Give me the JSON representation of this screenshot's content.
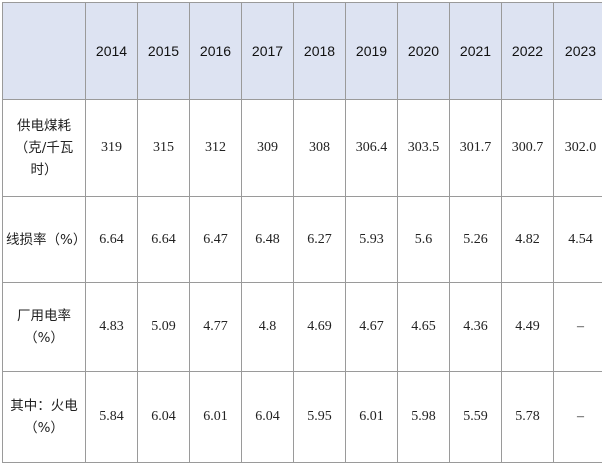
{
  "table": {
    "corner": "",
    "years": [
      "2014",
      "2015",
      "2016",
      "2017",
      "2018",
      "2019",
      "2020",
      "2021",
      "2022",
      "2023"
    ],
    "rows": [
      {
        "label": "供电煤耗（克/千瓦时）",
        "values": [
          "319",
          "315",
          "312",
          "309",
          "308",
          "306.4",
          "303.5",
          "301.7",
          "300.7",
          "302.0"
        ]
      },
      {
        "label": "线损率（%）",
        "values": [
          "6.64",
          "6.64",
          "6.47",
          "6.48",
          "6.27",
          "5.93",
          "5.6",
          "5.26",
          "4.82",
          "4.54"
        ]
      },
      {
        "label": "厂用电率（%）",
        "values": [
          "4.83",
          "5.09",
          "4.77",
          "4.8",
          "4.69",
          "4.67",
          "4.65",
          "4.36",
          "4.49",
          "–"
        ]
      },
      {
        "label": "其中：火电（%）",
        "values": [
          "5.84",
          "6.04",
          "6.01",
          "6.04",
          "5.95",
          "6.01",
          "5.98",
          "5.59",
          "5.78",
          "–"
        ]
      }
    ]
  }
}
